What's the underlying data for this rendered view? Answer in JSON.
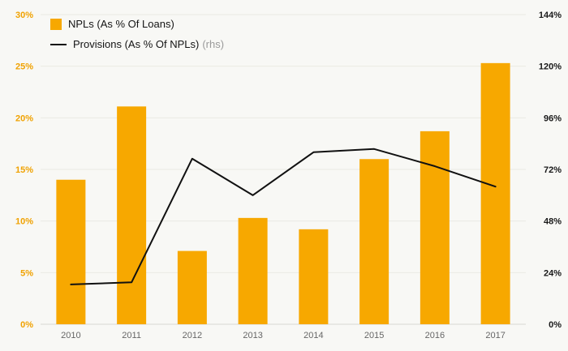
{
  "chart_data": {
    "type": "bar",
    "subtype": "combo-bar-line",
    "title": "",
    "categories": [
      "2010",
      "2011",
      "2012",
      "2013",
      "2014",
      "2015",
      "2016",
      "2017"
    ],
    "series": [
      {
        "name": "NPLs (As % Of Loans)",
        "type": "bar",
        "axis": "left",
        "color": "#f7a800",
        "values": [
          14.0,
          21.1,
          7.1,
          10.3,
          9.2,
          16.0,
          18.7,
          25.3
        ]
      },
      {
        "name": "Provisions (As % Of NPLs)",
        "rhs_note": "(rhs)",
        "type": "line",
        "axis": "right",
        "color": "#111111",
        "values": [
          18.5,
          19.5,
          77,
          60,
          80,
          81.5,
          73.5,
          64
        ]
      }
    ],
    "left_axis": {
      "min": 0,
      "max": 30,
      "step": 5,
      "labels": [
        "0%",
        "5%",
        "10%",
        "15%",
        "20%",
        "25%",
        "30%"
      ],
      "color": "#f0a202"
    },
    "right_axis": {
      "min": 0,
      "max": 144,
      "step": 24,
      "labels": [
        "0%",
        "24%",
        "48%",
        "72%",
        "96%",
        "120%",
        "144%"
      ],
      "color": "#191919"
    },
    "grid": "horizontal",
    "legend_position": "top-left",
    "background": "#f8f8f5"
  }
}
